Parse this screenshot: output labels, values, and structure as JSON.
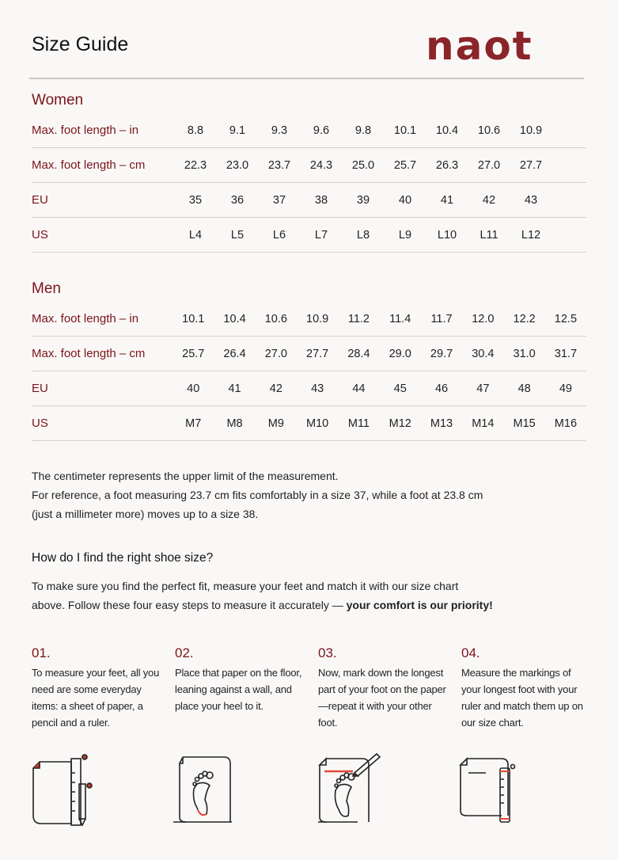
{
  "header": {
    "title": "Size Guide",
    "logo": "naot"
  },
  "colors": {
    "accent": "#7a1419",
    "logo": "#8a2529",
    "background": "#faf8f7",
    "highlight": "#e04a3a"
  },
  "women": {
    "title": "Women",
    "rows": [
      {
        "label": "Max. foot length – in",
        "values": [
          "8.8",
          "9.1",
          "9.3",
          "9.6",
          "9.8",
          "10.1",
          "10.4",
          "10.6",
          "10.9"
        ]
      },
      {
        "label": "Max. foot length – cm",
        "values": [
          "22.3",
          "23.0",
          "23.7",
          "24.3",
          "25.0",
          "25.7",
          "26.3",
          "27.0",
          "27.7"
        ]
      },
      {
        "label": "EU",
        "values": [
          "35",
          "36",
          "37",
          "38",
          "39",
          "40",
          "41",
          "42",
          "43"
        ]
      },
      {
        "label": "US",
        "values": [
          "L4",
          "L5",
          "L6",
          "L7",
          "L8",
          "L9",
          "L10",
          "L11",
          "L12"
        ]
      }
    ]
  },
  "men": {
    "title": "Men",
    "rows": [
      {
        "label": "Max. foot length – in",
        "values": [
          "10.1",
          "10.4",
          "10.6",
          "10.9",
          "11.2",
          "11.4",
          "11.7",
          "12.0",
          "12.2",
          "12.5"
        ]
      },
      {
        "label": "Max. foot length – cm",
        "values": [
          "25.7",
          "26.4",
          "27.0",
          "27.7",
          "28.4",
          "29.0",
          "29.7",
          "30.4",
          "31.0",
          "31.7"
        ]
      },
      {
        "label": "EU",
        "values": [
          "40",
          "41",
          "42",
          "43",
          "44",
          "45",
          "46",
          "47",
          "48",
          "49"
        ]
      },
      {
        "label": "US",
        "values": [
          "M7",
          "M8",
          "M9",
          "M10",
          "M11",
          "M12",
          "M13",
          "M14",
          "M15",
          "M16"
        ]
      }
    ]
  },
  "note": {
    "lines": [
      "The centimeter represents the upper limit of the measurement.",
      "For reference, a foot measuring 23.7 cm fits comfortably in a size 37, while a foot at 23.8 cm",
      "(just a millimeter more) moves up to a size 38."
    ]
  },
  "how": {
    "heading": "How do I find the right shoe size?",
    "line1": "To make sure you find the perfect fit, measure your feet and match it with our size chart",
    "line2": "above. Follow these four easy steps to measure it accurately — ",
    "line2_bold": "your comfort is our priority!"
  },
  "steps": [
    {
      "number": "01.",
      "text": "To measure your feet, all you need are some everyday items: a sheet of paper, a pencil and a ruler.",
      "icon": "paper-ruler-pencil-icon"
    },
    {
      "number": "02.",
      "text": "Place that paper on the floor, leaning against a wall, and place your heel to it.",
      "icon": "footprint-on-paper-icon"
    },
    {
      "number": "03.",
      "text": "Now, mark down the longest part of your foot on the paper—repeat it with your other foot.",
      "icon": "mark-foot-length-icon"
    },
    {
      "number": "04.",
      "text": "Measure the markings of your longest foot with your ruler and match them up on our size chart.",
      "icon": "measure-with-ruler-icon"
    }
  ]
}
